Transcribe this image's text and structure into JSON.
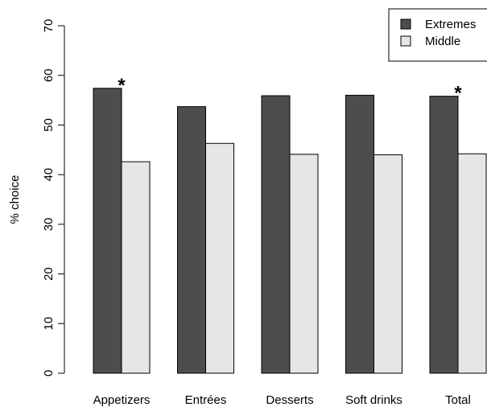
{
  "chart_data": {
    "type": "bar",
    "title": "",
    "xlabel": "",
    "ylabel": "% choice",
    "ylim": [
      0,
      70
    ],
    "yticks": [
      0,
      10,
      20,
      30,
      40,
      50,
      60,
      70
    ],
    "grid": false,
    "legend_position": "top-right",
    "categories": [
      "Appetizers",
      "Entrées",
      "Desserts",
      "Soft drinks",
      "Total"
    ],
    "series": [
      {
        "name": "Extremes",
        "color": "#4d4d4d",
        "values": [
          57.4,
          53.7,
          55.9,
          56.0,
          55.8
        ]
      },
      {
        "name": "Middle",
        "color": "#e6e6e6",
        "values": [
          42.6,
          46.3,
          44.1,
          44.0,
          44.2
        ]
      }
    ],
    "annotations": [
      {
        "text": "*",
        "category": "Appetizers"
      },
      {
        "text": "*",
        "category": "Total"
      }
    ]
  }
}
